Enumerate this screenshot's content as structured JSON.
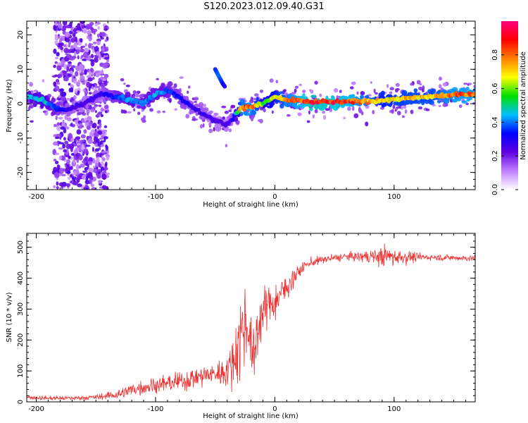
{
  "title": "S120.2023.012.09.40.G31",
  "chart_data": [
    {
      "type": "heatmap",
      "xlabel": "Height of straight line (km)",
      "ylabel": "Frequency (Hz)",
      "xlim": [
        -208,
        168
      ],
      "ylim": [
        -25,
        24
      ],
      "x_ticks": [
        -200,
        -100,
        0,
        100
      ],
      "y_ticks": [
        20,
        10,
        0,
        -10,
        -20
      ],
      "colorbar": {
        "label": "Normalized spectral amplitude",
        "range": [
          0,
          1
        ],
        "ticks": [
          "0.0",
          "0.2",
          "0.4",
          "0.6",
          "0.8"
        ],
        "colormap": [
          "#ffffff",
          "#c080ff",
          "#6000e0",
          "#0000ff",
          "#00c0ff",
          "#00e000",
          "#ffff00",
          "#ff8000",
          "#ff0000",
          "#ff0080"
        ]
      },
      "ridge": {
        "x": [
          -208,
          -195,
          -185,
          -175,
          -160,
          -145,
          -130,
          -120,
          -110,
          -100,
          -90,
          -80,
          -70,
          -60,
          -50,
          -40,
          -35,
          -28,
          -20,
          -10,
          -5,
          0,
          10,
          30,
          60,
          90,
          110,
          130,
          150,
          168
        ],
        "frequency": [
          2,
          1,
          -1,
          -2,
          0,
          3,
          2,
          1,
          0,
          3,
          4,
          2,
          -1,
          -3,
          -5,
          -6,
          -4,
          -1,
          -1,
          0,
          1,
          2,
          1,
          0.5,
          0.5,
          1,
          1.5,
          2,
          2.5,
          3
        ],
        "amplitude": [
          0.45,
          0.5,
          0.4,
          0.3,
          0.25,
          0.3,
          0.4,
          0.45,
          0.4,
          0.45,
          0.4,
          0.35,
          0.3,
          0.3,
          0.25,
          0.25,
          0.3,
          0.8,
          0.85,
          0.6,
          0.6,
          0.7,
          0.8,
          0.95,
          0.9,
          0.7,
          0.75,
          0.75,
          0.85,
          0.85
        ]
      },
      "side_branch": {
        "x": [
          -50,
          -47,
          -44,
          -42
        ],
        "frequency": [
          10,
          8,
          6,
          5
        ],
        "amplitude": [
          0.35,
          0.4,
          0.35,
          0.3
        ]
      },
      "noise_band": {
        "x_range": [
          -185,
          -140
        ],
        "frequency_range": [
          -25,
          24
        ],
        "amplitude": 0.2
      }
    },
    {
      "type": "line",
      "xlabel": "Height of straight line (km)",
      "ylabel": "SNR (10 * v/v)",
      "xlim": [
        -208,
        168
      ],
      "ylim": [
        0,
        545
      ],
      "x_ticks": [
        -200,
        -100,
        0,
        100
      ],
      "y_ticks": [
        0,
        100,
        200,
        300,
        400,
        500
      ],
      "color": "#ee3030",
      "series": [
        {
          "x": [
            -208,
            -190,
            -170,
            -150,
            -130,
            -120,
            -100,
            -80,
            -70,
            -60,
            -50,
            -40,
            -35,
            -30,
            -25,
            -22,
            -18,
            -15,
            -10,
            -5,
            0,
            5,
            10,
            15,
            20,
            25,
            30,
            40,
            50,
            60,
            70,
            80,
            90,
            100,
            110,
            120,
            130,
            140,
            150,
            160,
            168
          ],
          "y": [
            15,
            12,
            12,
            15,
            25,
            40,
            55,
            65,
            75,
            85,
            90,
            100,
            130,
            200,
            260,
            250,
            120,
            230,
            290,
            320,
            320,
            350,
            370,
            400,
            420,
            440,
            450,
            460,
            465,
            470,
            470,
            470,
            470,
            470,
            468,
            468,
            468,
            467,
            466,
            465,
            465
          ],
          "noise": [
            8,
            8,
            8,
            10,
            20,
            25,
            30,
            35,
            40,
            40,
            45,
            60,
            90,
            150,
            180,
            150,
            120,
            110,
            80,
            70,
            70,
            60,
            50,
            40,
            25,
            20,
            18,
            15,
            15,
            15,
            18,
            25,
            40,
            40,
            25,
            15,
            12,
            12,
            12,
            12,
            12
          ]
        }
      ]
    }
  ]
}
